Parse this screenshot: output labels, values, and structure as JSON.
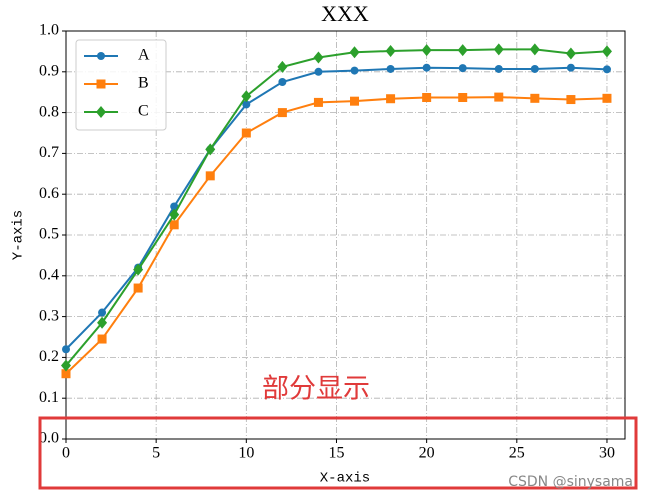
{
  "chart_data": {
    "type": "line",
    "title": "XXX",
    "xlabel": "X-axis",
    "ylabel": "Y-axis",
    "x": [
      0,
      2,
      4,
      6,
      8,
      10,
      12,
      14,
      16,
      18,
      20,
      22,
      24,
      26,
      28,
      30
    ],
    "series": [
      {
        "name": "A",
        "color": "#1f77b4",
        "marker": "circle",
        "values": [
          0.22,
          0.31,
          0.42,
          0.57,
          0.71,
          0.82,
          0.875,
          0.9,
          0.903,
          0.907,
          0.91,
          0.909,
          0.907,
          0.907,
          0.91,
          0.906
        ]
      },
      {
        "name": "B",
        "color": "#ff7f0e",
        "marker": "square",
        "values": [
          0.16,
          0.245,
          0.37,
          0.525,
          0.645,
          0.75,
          0.8,
          0.825,
          0.828,
          0.834,
          0.837,
          0.837,
          0.838,
          0.835,
          0.832,
          0.835
        ]
      },
      {
        "name": "C",
        "color": "#2ca02c",
        "marker": "diamond",
        "values": [
          0.18,
          0.285,
          0.415,
          0.55,
          0.71,
          0.84,
          0.912,
          0.935,
          0.948,
          0.951,
          0.953,
          0.953,
          0.955,
          0.955,
          0.945,
          0.95
        ]
      }
    ],
    "xlim": [
      0,
      31
    ],
    "ylim": [
      0,
      1
    ],
    "xticks": [
      0,
      5,
      10,
      15,
      20,
      25,
      30
    ],
    "yticks": [
      {
        "value": 0,
        "label": "0.0"
      },
      0.1,
      0.2,
      0.3,
      0.4,
      0.5,
      0.6,
      0.7,
      0.8,
      0.9,
      {
        "value": 1,
        "label": "1.0"
      }
    ],
    "grid": true,
    "legend": "upper left",
    "annotation": "部分显示",
    "watermark": "CSDN @sinysama"
  }
}
